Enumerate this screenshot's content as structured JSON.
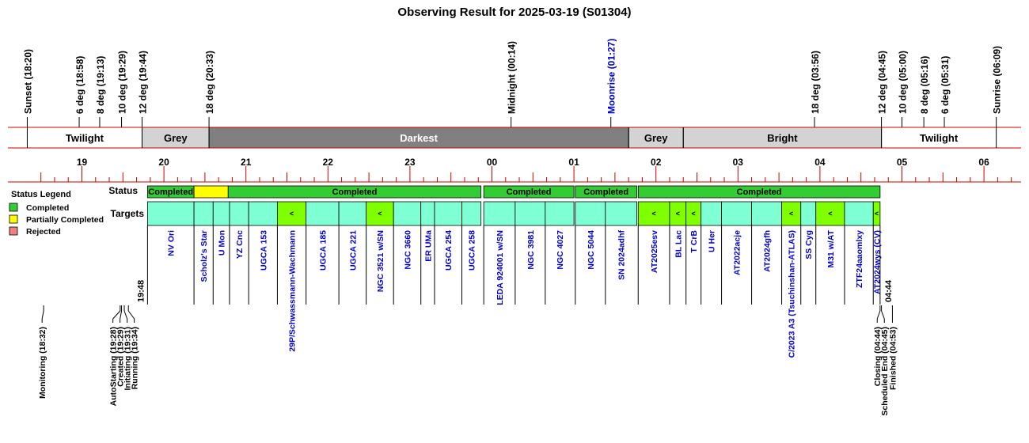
{
  "title": "Observing Result for 2025-03-19 (S01304)",
  "colors": {
    "twilight": "#ffffff",
    "grey": "#d3d3d3",
    "darkest": "#808080",
    "bright": "#d3d3d3",
    "completed": "#33cc33",
    "partial": "#ffff00",
    "rejected": "#f08080",
    "target_fill": "#7fffd4",
    "target_highlight": "#7fff00",
    "red_line": "#cc0000",
    "moon_text": "#0000cc",
    "target_text": "#0000cc"
  },
  "chart_data": {
    "type": "timeline",
    "title": "Observing Result for 2025-03-19 (S01304)",
    "time_axis": {
      "start": "18:10",
      "end": "06:20",
      "hour_labels": [
        "19",
        "20",
        "21",
        "22",
        "23",
        "00",
        "01",
        "02",
        "03",
        "04",
        "05",
        "06"
      ]
    },
    "events": [
      {
        "label": "Sunset (18:20)",
        "time": "18:20"
      },
      {
        "label": "6 deg (18:58)",
        "time": "18:58"
      },
      {
        "label": "8 deg (19:13)",
        "time": "19:13"
      },
      {
        "label": "10 deg (19:29)",
        "time": "19:29"
      },
      {
        "label": "12 deg (19:44)",
        "time": "19:44"
      },
      {
        "label": "18 deg (20:33)",
        "time": "20:33"
      },
      {
        "label": "Midnight (00:14)",
        "time": "00:14"
      },
      {
        "label": "Moonrise (01:27)",
        "time": "01:27",
        "moon": true
      },
      {
        "label": "18 deg (03:56)",
        "time": "03:56"
      },
      {
        "label": "12 deg (04:45)",
        "time": "04:45"
      },
      {
        "label": "10 deg (05:00)",
        "time": "05:00"
      },
      {
        "label": "8 deg (05:16)",
        "time": "05:16"
      },
      {
        "label": "6 deg (05:31)",
        "time": "05:31"
      },
      {
        "label": "Sunrise (06:09)",
        "time": "06:09"
      }
    ],
    "periods": [
      {
        "label": "Twilight",
        "start": "18:20",
        "end": "19:44",
        "kind": "twilight"
      },
      {
        "label": "Grey",
        "start": "19:44",
        "end": "20:33",
        "kind": "grey"
      },
      {
        "label": "Darkest",
        "start": "20:33",
        "end": "01:40",
        "kind": "darkest"
      },
      {
        "label": "Grey",
        "start": "01:40",
        "end": "02:20",
        "kind": "grey"
      },
      {
        "label": "Bright",
        "start": "02:20",
        "end": "04:45",
        "kind": "bright"
      },
      {
        "label": "Twilight",
        "start": "04:45",
        "end": "06:09",
        "kind": "twilight"
      }
    ],
    "status_row_label": "Status",
    "status": [
      {
        "label": "Completed",
        "start": "19:48",
        "end": "20:22",
        "state": "completed"
      },
      {
        "label": "",
        "start": "20:22",
        "end": "20:47",
        "state": "partial"
      },
      {
        "label": "Completed",
        "start": "20:47",
        "end": "23:52",
        "state": "completed"
      },
      {
        "label": "Completed",
        "start": "23:54",
        "end": "01:00",
        "state": "completed"
      },
      {
        "label": "Completed",
        "start": "01:01",
        "end": "01:46",
        "state": "completed"
      },
      {
        "label": "Completed",
        "start": "01:47",
        "end": "04:44",
        "state": "completed"
      }
    ],
    "targets_row_label": "Targets",
    "targets": [
      {
        "name": "NV Ori",
        "start": "19:48",
        "end": "20:22",
        "mark": ""
      },
      {
        "name": "Scholz's Star",
        "start": "20:22",
        "end": "20:36",
        "mark": ""
      },
      {
        "name": "U Mon",
        "start": "20:36",
        "end": "20:48",
        "mark": ""
      },
      {
        "name": "YZ Cnc",
        "start": "20:48",
        "end": "21:02",
        "mark": ""
      },
      {
        "name": "UGCA 153",
        "start": "21:02",
        "end": "21:23",
        "mark": ""
      },
      {
        "name": "29P/Schwassmann-Wachmann",
        "start": "21:23",
        "end": "21:44",
        "mark": "<"
      },
      {
        "name": "UGCA 185",
        "start": "21:44",
        "end": "22:08",
        "mark": ""
      },
      {
        "name": "UGCA 221",
        "start": "22:08",
        "end": "22:28",
        "mark": ""
      },
      {
        "name": "NGC 3521 w/SN",
        "start": "22:28",
        "end": "22:48",
        "mark": "<"
      },
      {
        "name": "NGC 3660",
        "start": "22:48",
        "end": "23:08",
        "mark": ""
      },
      {
        "name": "ER UMa",
        "start": "23:08",
        "end": "23:18",
        "mark": ""
      },
      {
        "name": "UGCA 254",
        "start": "23:18",
        "end": "23:38",
        "mark": ""
      },
      {
        "name": "UGCA 258",
        "start": "23:38",
        "end": "23:52",
        "mark": ""
      },
      {
        "name": "LEDA 924001 w/SN",
        "start": "23:54",
        "end": "00:17",
        "mark": ""
      },
      {
        "name": "NGC 3981",
        "start": "00:17",
        "end": "00:39",
        "mark": ""
      },
      {
        "name": "NGC 4027",
        "start": "00:39",
        "end": "01:00",
        "mark": ""
      },
      {
        "name": "NGC 5044",
        "start": "01:01",
        "end": "01:23",
        "mark": ""
      },
      {
        "name": "SN 2024adhf",
        "start": "01:23",
        "end": "01:46",
        "mark": ""
      },
      {
        "name": "AT2025esv",
        "start": "01:47",
        "end": "02:10",
        "mark": "<"
      },
      {
        "name": "BL Lac",
        "start": "02:10",
        "end": "02:22",
        "mark": "<"
      },
      {
        "name": "T CrB",
        "start": "02:22",
        "end": "02:33",
        "mark": "<"
      },
      {
        "name": "U Her",
        "start": "02:33",
        "end": "02:48",
        "mark": ""
      },
      {
        "name": "AT2022acje",
        "start": "02:48",
        "end": "03:10",
        "mark": ""
      },
      {
        "name": "AT2024gfh",
        "start": "03:10",
        "end": "03:32",
        "mark": ""
      },
      {
        "name": "C/2023 A3 (Tsuchinshan-ATLAS)",
        "start": "03:32",
        "end": "03:46",
        "mark": "<"
      },
      {
        "name": "SS Cyg",
        "start": "03:46",
        "end": "03:57",
        "mark": ""
      },
      {
        "name": "M31 w/AT",
        "start": "03:57",
        "end": "04:18",
        "mark": "<"
      },
      {
        "name": "ZTF24aaomlxy",
        "start": "04:18",
        "end": "04:39",
        "mark": ""
      },
      {
        "name": "AT2024wys (CV)",
        "start": "04:39",
        "end": "04:44",
        "mark": "<"
      }
    ],
    "start_time_label": "19:48",
    "end_time_label": "04:44",
    "legend": {
      "title": "Status Legend",
      "position": "left",
      "items": [
        {
          "label": "Completed",
          "state": "completed"
        },
        {
          "label": "Partially Completed",
          "state": "partial"
        },
        {
          "label": "Rejected",
          "state": "rejected"
        }
      ]
    },
    "lifecycle_events": [
      {
        "label": "Monitoring (18:32)",
        "time": "18:32",
        "group": 0
      },
      {
        "label": "AutoStarting (19:28)",
        "time": "19:28",
        "group": 1
      },
      {
        "label": "Created (19:29)",
        "time": "19:29",
        "group": 1
      },
      {
        "label": "Initiating (19:31)",
        "time": "19:31",
        "group": 1
      },
      {
        "label": "Running (19:34)",
        "time": "19:34",
        "group": 1
      },
      {
        "label": "Closing (04:44)",
        "time": "04:44",
        "group": 2
      },
      {
        "label": "Scheduled End (04:45)",
        "time": "04:45",
        "group": 2
      },
      {
        "label": "Finished (04:53)",
        "time": "04:53",
        "group": 3
      }
    ]
  }
}
